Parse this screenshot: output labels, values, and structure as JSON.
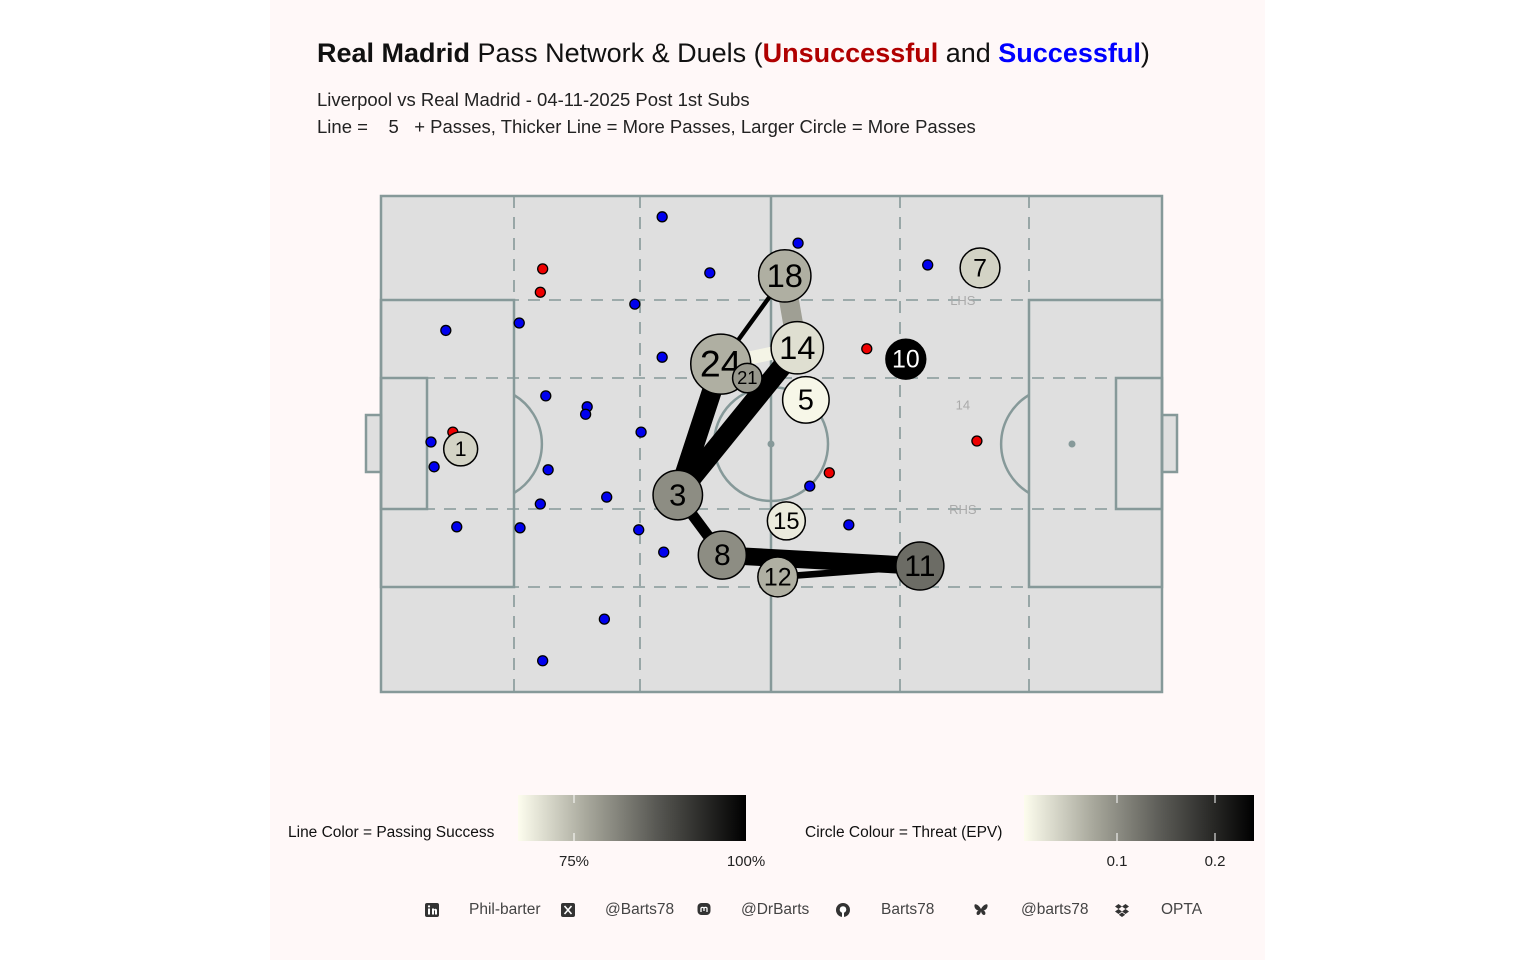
{
  "title": {
    "team": "Real Madrid",
    "middle": " Pass Network & Duels (",
    "unsuccessful": "Unsuccessful",
    "and": " and ",
    "successful": "Successful",
    "close": ")"
  },
  "subtitle": "Liverpool vs Real Madrid - 04-11-2025 Post 1st Subs",
  "subtitle2": "Line =    5   + Passes, Thicker Line = More Passes, Larger Circle = More Passes",
  "colors": {
    "background": "#fff8f8",
    "pitch": "#dfdfdf",
    "pitch_lines": "#869999",
    "unsuccessful": "#b00000",
    "successful": "#0000ff",
    "duel_unsuccessful": "#ee0000",
    "duel_successful": "#0000ee",
    "scale_low": "#fdfdee",
    "scale_high": "#000000"
  },
  "legend": {
    "line_label": "Line Color = Passing Success",
    "line_ticks": [
      "75%",
      "100%"
    ],
    "circle_label": "Circle Colour = Threat (EPV)",
    "circle_ticks": [
      "0.1",
      "0.2"
    ]
  },
  "footer": [
    {
      "icon": "linkedin-icon",
      "text": "Phil-barter"
    },
    {
      "icon": "x-icon",
      "text": "@Barts78"
    },
    {
      "icon": "mastodon-icon",
      "text": "@DrBarts"
    },
    {
      "icon": "github-icon",
      "text": "Barts78"
    },
    {
      "icon": "bluesky-icon",
      "text": "@barts78"
    },
    {
      "icon": "dropbox-icon",
      "text": "OPTA"
    }
  ],
  "chart_data": {
    "type": "pass-network",
    "pitch": {
      "x_range": [
        0,
        100
      ],
      "y_range": [
        0,
        100
      ],
      "orientation": "horizontal, attacking right"
    },
    "annotations": [
      {
        "text": "LHS",
        "x": 74.5,
        "y": 79.0
      },
      {
        "text": "RHS",
        "x": 74.5,
        "y": 36.9
      },
      {
        "text": "14",
        "x": 74.5,
        "y": 58.0
      }
    ],
    "color_scales": {
      "line_success_pct": [
        67,
        100
      ],
      "circle_epv": [
        0.005,
        0.24
      ]
    },
    "players": [
      {
        "number": "18",
        "x": 51.7,
        "y": 83.9,
        "passes": 19,
        "epv": 0.07
      },
      {
        "number": "14",
        "x": 53.3,
        "y": 69.4,
        "passes": 19,
        "epv": 0.03
      },
      {
        "number": "24",
        "x": 43.5,
        "y": 66.1,
        "passes": 25,
        "epv": 0.07
      },
      {
        "number": "21",
        "x": 46.9,
        "y": 63.3,
        "passes": 6,
        "epv": 0.09
      },
      {
        "number": "5",
        "x": 54.4,
        "y": 58.9,
        "passes": 15,
        "epv": 0.01
      },
      {
        "number": "10",
        "x": 67.2,
        "y": 67.1,
        "passes": 11,
        "epv": 0.24
      },
      {
        "number": "7",
        "x": 76.7,
        "y": 85.5,
        "passes": 11,
        "epv": 0.04
      },
      {
        "number": "3",
        "x": 38.0,
        "y": 39.7,
        "passes": 17,
        "epv": 0.1
      },
      {
        "number": "15",
        "x": 51.9,
        "y": 34.5,
        "passes": 10,
        "epv": 0.02
      },
      {
        "number": "8",
        "x": 43.7,
        "y": 27.6,
        "passes": 16,
        "epv": 0.1
      },
      {
        "number": "12",
        "x": 50.8,
        "y": 23.2,
        "passes": 11,
        "epv": 0.07
      },
      {
        "number": "11",
        "x": 69.0,
        "y": 25.4,
        "passes": 16,
        "epv": 0.13
      },
      {
        "number": "1",
        "x": 10.2,
        "y": 49.0,
        "passes": 8,
        "epv": 0.04
      }
    ],
    "links": [
      {
        "from": "18",
        "to": "14",
        "passes": 13,
        "success_pct": 78
      },
      {
        "from": "24",
        "to": "14",
        "passes": 10,
        "success_pct": 68
      },
      {
        "from": "18",
        "to": "24",
        "passes": 6,
        "success_pct": 100
      },
      {
        "from": "24",
        "to": "3",
        "passes": 13,
        "success_pct": 100
      },
      {
        "from": "14",
        "to": "3",
        "passes": 13,
        "success_pct": 100
      },
      {
        "from": "3",
        "to": "8",
        "passes": 9,
        "success_pct": 100
      },
      {
        "from": "8",
        "to": "11",
        "passes": 12,
        "success_pct": 100
      },
      {
        "from": "12",
        "to": "11",
        "passes": 7,
        "success_pct": 100
      }
    ],
    "duels": [
      {
        "x": 36.0,
        "y": 95.8,
        "outcome": "successful"
      },
      {
        "x": 32.5,
        "y": 78.2,
        "outcome": "successful"
      },
      {
        "x": 8.3,
        "y": 72.9,
        "outcome": "successful"
      },
      {
        "x": 17.7,
        "y": 74.4,
        "outcome": "successful"
      },
      {
        "x": 36.0,
        "y": 67.5,
        "outcome": "successful"
      },
      {
        "x": 21.1,
        "y": 59.7,
        "outcome": "successful"
      },
      {
        "x": 26.4,
        "y": 57.5,
        "outcome": "successful"
      },
      {
        "x": 26.2,
        "y": 56.0,
        "outcome": "successful"
      },
      {
        "x": 33.3,
        "y": 52.4,
        "outcome": "successful"
      },
      {
        "x": 6.4,
        "y": 50.4,
        "outcome": "successful"
      },
      {
        "x": 6.8,
        "y": 45.4,
        "outcome": "successful"
      },
      {
        "x": 21.4,
        "y": 44.8,
        "outcome": "successful"
      },
      {
        "x": 28.9,
        "y": 39.3,
        "outcome": "successful"
      },
      {
        "x": 20.4,
        "y": 37.9,
        "outcome": "successful"
      },
      {
        "x": 9.7,
        "y": 33.3,
        "outcome": "successful"
      },
      {
        "x": 17.8,
        "y": 33.1,
        "outcome": "successful"
      },
      {
        "x": 33.0,
        "y": 32.7,
        "outcome": "successful"
      },
      {
        "x": 36.2,
        "y": 28.2,
        "outcome": "successful"
      },
      {
        "x": 28.6,
        "y": 14.7,
        "outcome": "successful"
      },
      {
        "x": 20.7,
        "y": 6.3,
        "outcome": "successful"
      },
      {
        "x": 53.4,
        "y": 90.5,
        "outcome": "successful"
      },
      {
        "x": 42.1,
        "y": 84.5,
        "outcome": "successful"
      },
      {
        "x": 70.0,
        "y": 86.1,
        "outcome": "successful"
      },
      {
        "x": 54.9,
        "y": 41.5,
        "outcome": "successful"
      },
      {
        "x": 59.9,
        "y": 33.7,
        "outcome": "successful"
      },
      {
        "x": 20.7,
        "y": 85.3,
        "outcome": "unsuccessful"
      },
      {
        "x": 20.4,
        "y": 80.6,
        "outcome": "unsuccessful"
      },
      {
        "x": 9.2,
        "y": 52.4,
        "outcome": "unsuccessful"
      },
      {
        "x": 62.2,
        "y": 69.2,
        "outcome": "unsuccessful"
      },
      {
        "x": 57.4,
        "y": 44.2,
        "outcome": "unsuccessful"
      },
      {
        "x": 76.3,
        "y": 50.6,
        "outcome": "unsuccessful"
      }
    ]
  }
}
